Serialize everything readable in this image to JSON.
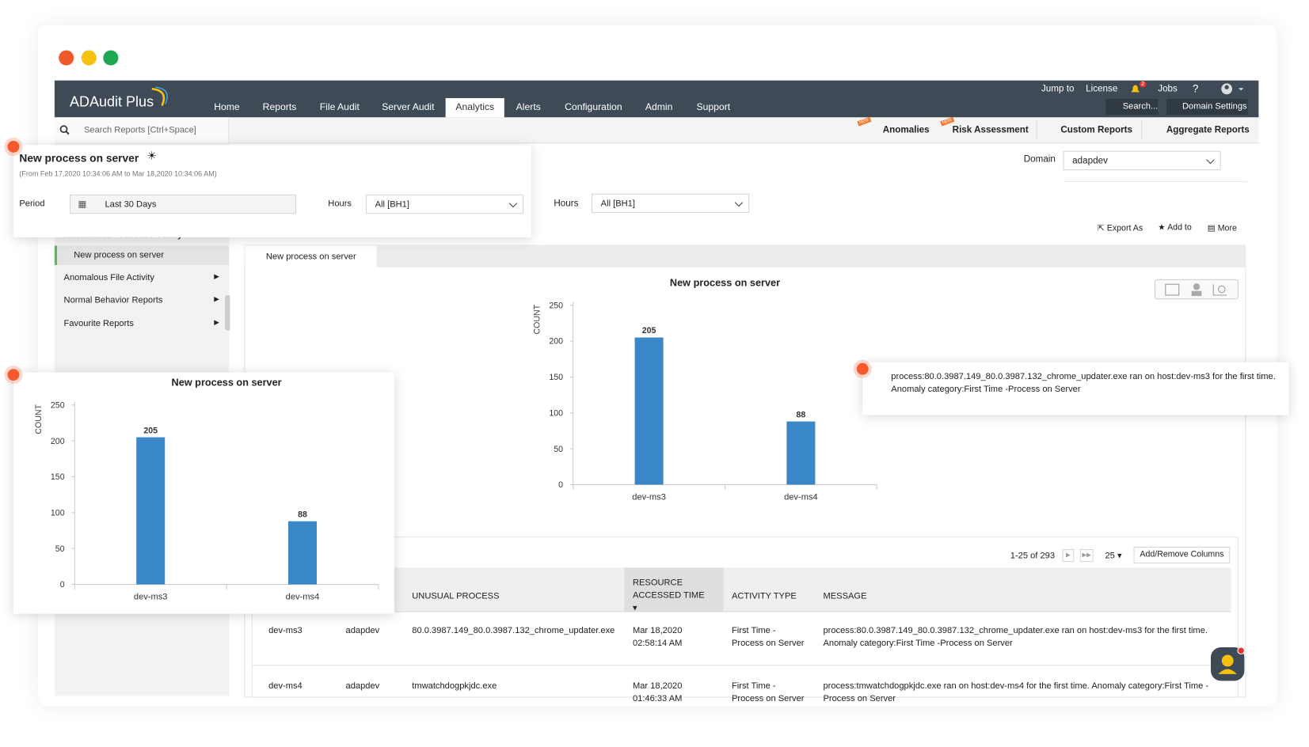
{
  "header": {
    "brand": "ADAudit Plus",
    "nav": [
      "Home",
      "Reports",
      "File Audit",
      "Server Audit",
      "Analytics",
      "Alerts",
      "Configuration",
      "Admin",
      "Support"
    ],
    "top_links": [
      "Jump to",
      "License",
      "Jobs",
      "?"
    ],
    "notification_count": 2,
    "search": "Search...",
    "domain_settings": "Domain Settings"
  },
  "subbar": {
    "search_placeholder": "Search Reports [Ctrl+Space]",
    "new_badge": "NEW",
    "tabs": [
      "Anomalies",
      "Risk Assessment",
      "Custom Reports",
      "Aggregate Reports"
    ]
  },
  "domain": {
    "label": "Domain",
    "value": "adapdev"
  },
  "filter": {
    "hours_label": "Hours",
    "hours_value": "All [BH1]"
  },
  "actions": [
    "Export As",
    "Add to",
    "More"
  ],
  "sidebar": {
    "items": [
      "Anomalous Process Activity",
      "New process on server",
      "Anomalous File Activity",
      "Normal Behavior Reports",
      "Favourite Reports"
    ]
  },
  "report_tab": "New process on server",
  "popup": {
    "title": "New process on server",
    "subtitle": "(From Feb 17,2020 10:34:06 AM to Mar 18,2020 10:34:06 AM)",
    "period_label": "Period",
    "period_value": "Last 30 Days",
    "hours_label": "Hours",
    "hours_value": "All [BH1]"
  },
  "tooltip": {
    "lines": [
      "process:80.0.3987.149_80.0.3987.132_chrome_updater.exe ran on host:dev-ms3 for the first time.",
      "Anomaly category:First Time -Process on Server"
    ]
  },
  "table": {
    "pagination": "1-25 of 293",
    "page_size": 25,
    "add_remove": "Add/Remove Columns",
    "columns": [
      "UNUSUAL PROCESS",
      "RESOURCE ACCESSED TIME",
      "ACTIVITY TYPE",
      "MESSAGE"
    ],
    "rows": [
      [
        "dev-ms3",
        "adapdev",
        "80.0.3987.149_80.0.3987.132_chrome_updater.exe",
        "Mar 18,2020 02:58:14 AM",
        "First Time -Process on Server",
        "process:80.0.3987.149_80.0.3987.132_chrome_updater.exe ran on host:dev-ms3 for the first time. Anomaly category:First Time -Process on Server"
      ],
      [
        "dev-ms4",
        "adapdev",
        "tmwatchdogpkjdc.exe",
        "Mar 18,2020 01:46:33 AM",
        "First Time -Process on Server",
        "process:tmwatchdogpkjdc.exe ran on host:dev-ms4 for the first time. Anomaly category:First Time -Process on Server"
      ]
    ]
  },
  "chart_data": [
    {
      "type": "bar",
      "title": "New process on server",
      "y_label": "COUNT",
      "categories": [
        "dev-ms3",
        "dev-ms4"
      ],
      "values": [
        205,
        88
      ],
      "color": "#3a87c8",
      "ylim": [
        0,
        250
      ],
      "yticks": [
        0,
        50,
        100,
        150,
        200,
        250
      ]
    },
    {
      "type": "bar",
      "title": "New process on server",
      "y_label": "COUNT",
      "categories": [
        "dev-ms3",
        "dev-ms4"
      ],
      "values": [
        205,
        88
      ],
      "color": "#3a87c8",
      "ylim": [
        0,
        250
      ],
      "yticks": [
        0,
        50,
        100,
        150,
        200,
        250
      ]
    }
  ]
}
